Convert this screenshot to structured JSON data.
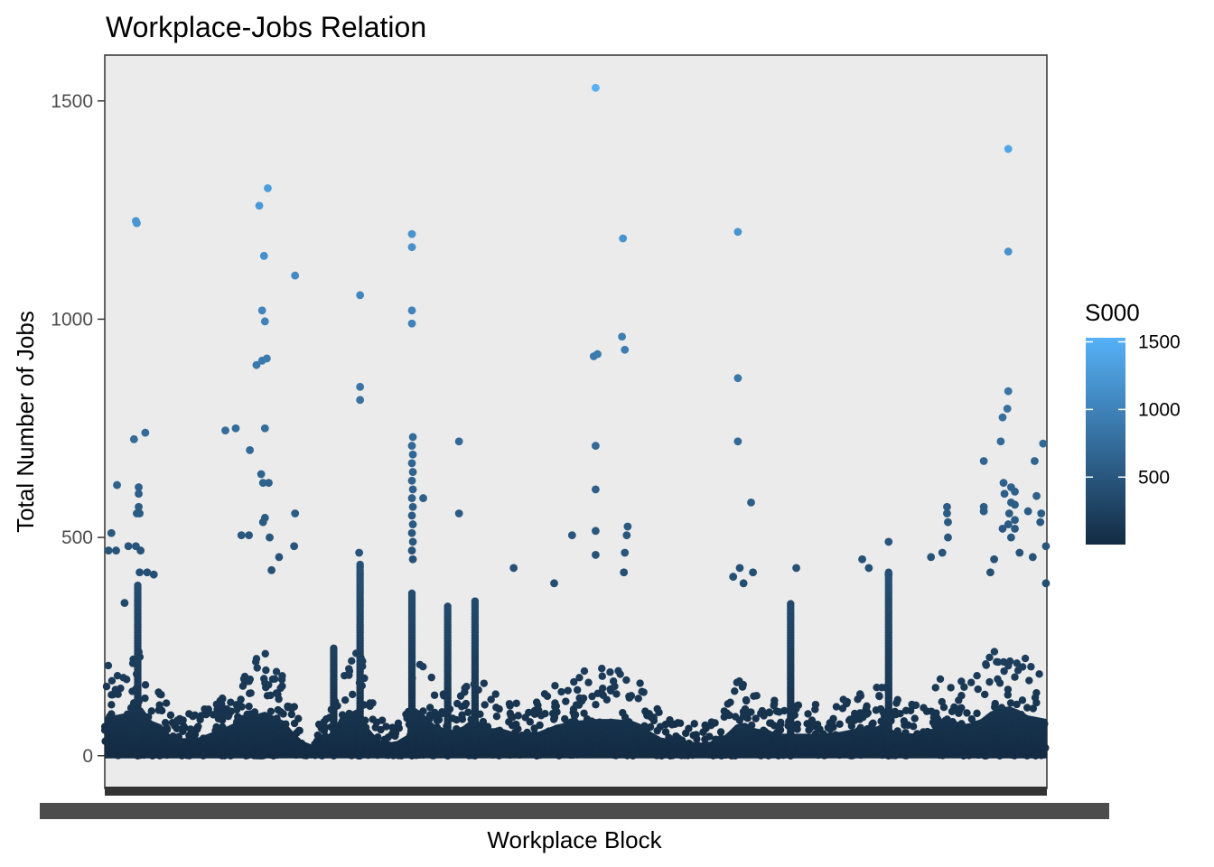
{
  "chart_data": {
    "type": "scatter",
    "title": "Workplace-Jobs Relation",
    "xlabel": "Workplace Block",
    "ylabel": "Total Number of Jobs",
    "ylim": [
      -75,
      1605
    ],
    "y_ticks": [
      0,
      500,
      1000,
      1500
    ],
    "x_axis_note": "categorical; tick labels overprinted and unreadable",
    "grid": false,
    "color_scale": {
      "name": "S000",
      "breaks": [
        500,
        1000,
        1500
      ],
      "range": [
        1,
        1530
      ],
      "low_color": "#132b43",
      "high_color": "#56b1f7"
    },
    "legend_position": "right",
    "panel_background": "#ebebeb",
    "outlier_points": [
      {
        "x": 0.013,
        "y": 620
      },
      {
        "x": 0.007,
        "y": 510
      },
      {
        "x": 0.004,
        "y": 470
      },
      {
        "x": 0.012,
        "y": 470
      },
      {
        "x": 0.031,
        "y": 725
      },
      {
        "x": 0.043,
        "y": 740
      },
      {
        "x": 0.033,
        "y": 1225
      },
      {
        "x": 0.034,
        "y": 1220
      },
      {
        "x": 0.036,
        "y": 615
      },
      {
        "x": 0.036,
        "y": 600
      },
      {
        "x": 0.036,
        "y": 570
      },
      {
        "x": 0.037,
        "y": 555
      },
      {
        "x": 0.034,
        "y": 555
      },
      {
        "x": 0.025,
        "y": 480
      },
      {
        "x": 0.033,
        "y": 480
      },
      {
        "x": 0.038,
        "y": 470
      },
      {
        "x": 0.037,
        "y": 420
      },
      {
        "x": 0.052,
        "y": 415
      },
      {
        "x": 0.021,
        "y": 350
      },
      {
        "x": 0.045,
        "y": 420
      },
      {
        "x": 0.128,
        "y": 745
      },
      {
        "x": 0.139,
        "y": 750
      },
      {
        "x": 0.154,
        "y": 700
      },
      {
        "x": 0.161,
        "y": 895
      },
      {
        "x": 0.167,
        "y": 905
      },
      {
        "x": 0.172,
        "y": 910
      },
      {
        "x": 0.164,
        "y": 1260
      },
      {
        "x": 0.173,
        "y": 1300
      },
      {
        "x": 0.169,
        "y": 1145
      },
      {
        "x": 0.167,
        "y": 1020
      },
      {
        "x": 0.17,
        "y": 995
      },
      {
        "x": 0.17,
        "y": 750
      },
      {
        "x": 0.166,
        "y": 645
      },
      {
        "x": 0.168,
        "y": 625
      },
      {
        "x": 0.174,
        "y": 625
      },
      {
        "x": 0.17,
        "y": 545
      },
      {
        "x": 0.168,
        "y": 535
      },
      {
        "x": 0.153,
        "y": 505
      },
      {
        "x": 0.145,
        "y": 505
      },
      {
        "x": 0.175,
        "y": 500
      },
      {
        "x": 0.185,
        "y": 455
      },
      {
        "x": 0.177,
        "y": 425
      },
      {
        "x": 0.202,
        "y": 1100
      },
      {
        "x": 0.202,
        "y": 555
      },
      {
        "x": 0.201,
        "y": 480
      },
      {
        "x": 0.271,
        "y": 1055
      },
      {
        "x": 0.271,
        "y": 845
      },
      {
        "x": 0.271,
        "y": 815
      },
      {
        "x": 0.27,
        "y": 465
      },
      {
        "x": 0.326,
        "y": 1195
      },
      {
        "x": 0.326,
        "y": 1165
      },
      {
        "x": 0.326,
        "y": 1020
      },
      {
        "x": 0.326,
        "y": 990
      },
      {
        "x": 0.327,
        "y": 730
      },
      {
        "x": 0.326,
        "y": 710
      },
      {
        "x": 0.327,
        "y": 690
      },
      {
        "x": 0.326,
        "y": 670
      },
      {
        "x": 0.327,
        "y": 650
      },
      {
        "x": 0.326,
        "y": 630
      },
      {
        "x": 0.327,
        "y": 610
      },
      {
        "x": 0.326,
        "y": 590
      },
      {
        "x": 0.327,
        "y": 570
      },
      {
        "x": 0.326,
        "y": 550
      },
      {
        "x": 0.327,
        "y": 530
      },
      {
        "x": 0.326,
        "y": 510
      },
      {
        "x": 0.327,
        "y": 490
      },
      {
        "x": 0.326,
        "y": 470
      },
      {
        "x": 0.327,
        "y": 450
      },
      {
        "x": 0.338,
        "y": 590
      },
      {
        "x": 0.376,
        "y": 720
      },
      {
        "x": 0.376,
        "y": 555
      },
      {
        "x": 0.434,
        "y": 430
      },
      {
        "x": 0.477,
        "y": 395
      },
      {
        "x": 0.496,
        "y": 505
      },
      {
        "x": 0.519,
        "y": 915
      },
      {
        "x": 0.523,
        "y": 920
      },
      {
        "x": 0.521,
        "y": 1530
      },
      {
        "x": 0.521,
        "y": 710
      },
      {
        "x": 0.521,
        "y": 610
      },
      {
        "x": 0.521,
        "y": 515
      },
      {
        "x": 0.521,
        "y": 460
      },
      {
        "x": 0.55,
        "y": 1185
      },
      {
        "x": 0.549,
        "y": 960
      },
      {
        "x": 0.552,
        "y": 930
      },
      {
        "x": 0.555,
        "y": 525
      },
      {
        "x": 0.554,
        "y": 505
      },
      {
        "x": 0.552,
        "y": 465
      },
      {
        "x": 0.551,
        "y": 420
      },
      {
        "x": 0.672,
        "y": 1200
      },
      {
        "x": 0.672,
        "y": 865
      },
      {
        "x": 0.672,
        "y": 720
      },
      {
        "x": 0.686,
        "y": 580
      },
      {
        "x": 0.674,
        "y": 430
      },
      {
        "x": 0.667,
        "y": 410
      },
      {
        "x": 0.688,
        "y": 420
      },
      {
        "x": 0.678,
        "y": 395
      },
      {
        "x": 0.734,
        "y": 430
      },
      {
        "x": 0.804,
        "y": 450
      },
      {
        "x": 0.811,
        "y": 430
      },
      {
        "x": 0.832,
        "y": 490
      },
      {
        "x": 0.832,
        "y": 415
      },
      {
        "x": 0.877,
        "y": 455
      },
      {
        "x": 0.894,
        "y": 570
      },
      {
        "x": 0.894,
        "y": 555
      },
      {
        "x": 0.895,
        "y": 535
      },
      {
        "x": 0.895,
        "y": 500
      },
      {
        "x": 0.889,
        "y": 465
      },
      {
        "x": 0.933,
        "y": 675
      },
      {
        "x": 0.933,
        "y": 570
      },
      {
        "x": 0.933,
        "y": 560
      },
      {
        "x": 0.951,
        "y": 720
      },
      {
        "x": 0.953,
        "y": 775
      },
      {
        "x": 0.958,
        "y": 795
      },
      {
        "x": 0.959,
        "y": 835
      },
      {
        "x": 0.959,
        "y": 1390
      },
      {
        "x": 0.959,
        "y": 1155
      },
      {
        "x": 0.954,
        "y": 625
      },
      {
        "x": 0.955,
        "y": 600
      },
      {
        "x": 0.962,
        "y": 615
      },
      {
        "x": 0.962,
        "y": 580
      },
      {
        "x": 0.966,
        "y": 605
      },
      {
        "x": 0.966,
        "y": 575
      },
      {
        "x": 0.96,
        "y": 555
      },
      {
        "x": 0.959,
        "y": 530
      },
      {
        "x": 0.953,
        "y": 520
      },
      {
        "x": 0.966,
        "y": 540
      },
      {
        "x": 0.966,
        "y": 520
      },
      {
        "x": 0.962,
        "y": 500
      },
      {
        "x": 0.987,
        "y": 675
      },
      {
        "x": 0.996,
        "y": 715
      },
      {
        "x": 0.989,
        "y": 595
      },
      {
        "x": 0.994,
        "y": 555
      },
      {
        "x": 0.999,
        "y": 480
      },
      {
        "x": 0.993,
        "y": 535
      },
      {
        "x": 0.98,
        "y": 560
      },
      {
        "x": 0.971,
        "y": 465
      },
      {
        "x": 0.944,
        "y": 450
      },
      {
        "x": 0.94,
        "y": 420
      },
      {
        "x": 0.985,
        "y": 455
      },
      {
        "x": 0.999,
        "y": 395
      }
    ],
    "dense_ridge": [
      [
        0.0,
        210
      ],
      [
        0.02,
        230
      ],
      [
        0.04,
        260
      ],
      [
        0.05,
        190
      ],
      [
        0.06,
        170
      ],
      [
        0.07,
        110
      ],
      [
        0.08,
        95
      ],
      [
        0.1,
        100
      ],
      [
        0.11,
        120
      ],
      [
        0.13,
        160
      ],
      [
        0.15,
        210
      ],
      [
        0.17,
        240
      ],
      [
        0.19,
        190
      ],
      [
        0.2,
        130
      ],
      [
        0.21,
        80
      ],
      [
        0.22,
        60
      ],
      [
        0.24,
        110
      ],
      [
        0.25,
        210
      ],
      [
        0.27,
        260
      ],
      [
        0.28,
        150
      ],
      [
        0.29,
        90
      ],
      [
        0.3,
        70
      ],
      [
        0.31,
        80
      ],
      [
        0.32,
        110
      ],
      [
        0.33,
        260
      ],
      [
        0.34,
        220
      ],
      [
        0.35,
        170
      ],
      [
        0.36,
        150
      ],
      [
        0.37,
        140
      ],
      [
        0.38,
        160
      ],
      [
        0.39,
        200
      ],
      [
        0.4,
        180
      ],
      [
        0.41,
        150
      ],
      [
        0.42,
        150
      ],
      [
        0.44,
        120
      ],
      [
        0.46,
        130
      ],
      [
        0.48,
        170
      ],
      [
        0.5,
        190
      ],
      [
        0.52,
        200
      ],
      [
        0.54,
        200
      ],
      [
        0.56,
        190
      ],
      [
        0.57,
        170
      ],
      [
        0.58,
        130
      ],
      [
        0.59,
        100
      ],
      [
        0.6,
        90
      ],
      [
        0.62,
        80
      ],
      [
        0.63,
        70
      ],
      [
        0.65,
        80
      ],
      [
        0.66,
        120
      ],
      [
        0.67,
        170
      ],
      [
        0.68,
        180
      ],
      [
        0.69,
        150
      ],
      [
        0.7,
        140
      ],
      [
        0.72,
        120
      ],
      [
        0.74,
        120
      ],
      [
        0.76,
        120
      ],
      [
        0.78,
        130
      ],
      [
        0.8,
        150
      ],
      [
        0.82,
        160
      ],
      [
        0.83,
        160
      ],
      [
        0.84,
        130
      ],
      [
        0.86,
        120
      ],
      [
        0.88,
        150
      ],
      [
        0.89,
        210
      ],
      [
        0.9,
        200
      ],
      [
        0.91,
        170
      ],
      [
        0.92,
        180
      ],
      [
        0.93,
        200
      ],
      [
        0.94,
        240
      ],
      [
        0.95,
        260
      ],
      [
        0.96,
        270
      ],
      [
        0.97,
        250
      ],
      [
        0.98,
        220
      ],
      [
        0.99,
        210
      ],
      [
        1.0,
        200
      ]
    ],
    "tall_columns": [
      {
        "x": 0.728,
        "y0": 0,
        "y1": 350
      },
      {
        "x": 0.832,
        "y0": 0,
        "y1": 420
      },
      {
        "x": 0.326,
        "y0": 0,
        "y1": 375
      },
      {
        "x": 0.271,
        "y0": 0,
        "y1": 440
      },
      {
        "x": 0.243,
        "y0": 0,
        "y1": 250
      },
      {
        "x": 0.364,
        "y0": 0,
        "y1": 345
      },
      {
        "x": 0.393,
        "y0": 0,
        "y1": 355
      },
      {
        "x": 0.035,
        "y0": 0,
        "y1": 390
      }
    ]
  }
}
